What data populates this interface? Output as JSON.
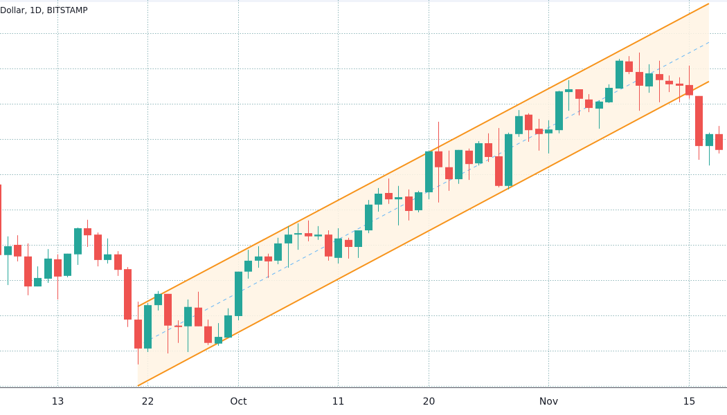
{
  "header": {
    "symbol_title": "Dollar, 1D, BITSTAMP"
  },
  "colors": {
    "up": "#26a69a",
    "down": "#ef5350",
    "channel_line": "#f7931a",
    "channel_fill": "#fff3e3",
    "channel_midline": "#64b5f6",
    "grid": "#6a9fa3",
    "axis_text": "#131722"
  },
  "chart_data": {
    "type": "candlestick",
    "title": "Dollar, 1D, BITSTAMP",
    "xlabel": "",
    "ylabel": "",
    "y_axis_labels_visible": false,
    "y_units": "price levels expressed in horizontal gridline intervals (no price scale printed)",
    "ylim": [
      -0.04,
      10.94
    ],
    "grid": true,
    "x_ticks": [
      {
        "date": "Sep 13",
        "label": "13"
      },
      {
        "date": "Sep 22",
        "label": "22"
      },
      {
        "date": "Oct 1",
        "label": "Oct"
      },
      {
        "date": "Oct 11",
        "label": "11"
      },
      {
        "date": "Oct 20",
        "label": "20"
      },
      {
        "date": "Nov 1",
        "label": "Nov"
      },
      {
        "date": "Nov 15",
        "label": "15"
      }
    ],
    "candles": [
      {
        "date": "Sep 7",
        "o": 5.71,
        "h": 5.84,
        "l": 3.65,
        "c": 3.71
      },
      {
        "date": "Sep 8",
        "o": 3.71,
        "h": 4.24,
        "l": 2.86,
        "c": 3.96
      },
      {
        "date": "Sep 9",
        "o": 4.0,
        "h": 4.27,
        "l": 3.53,
        "c": 3.67
      },
      {
        "date": "Sep 10",
        "o": 3.67,
        "h": 4.04,
        "l": 2.57,
        "c": 2.82
      },
      {
        "date": "Sep 11",
        "o": 2.82,
        "h": 3.39,
        "l": 2.82,
        "c": 3.06
      },
      {
        "date": "Sep 12",
        "o": 3.04,
        "h": 3.88,
        "l": 2.92,
        "c": 3.61
      },
      {
        "date": "Sep 13",
        "o": 3.59,
        "h": 3.73,
        "l": 2.45,
        "c": 3.1
      },
      {
        "date": "Sep 14",
        "o": 3.12,
        "h": 3.75,
        "l": 3.08,
        "c": 3.75
      },
      {
        "date": "Sep 15",
        "o": 3.73,
        "h": 4.49,
        "l": 3.43,
        "c": 4.47
      },
      {
        "date": "Sep 16",
        "o": 4.47,
        "h": 4.71,
        "l": 3.94,
        "c": 4.27
      },
      {
        "date": "Sep 17",
        "o": 4.29,
        "h": 4.35,
        "l": 3.39,
        "c": 3.57
      },
      {
        "date": "Sep 18",
        "o": 3.57,
        "h": 4.18,
        "l": 3.47,
        "c": 3.73
      },
      {
        "date": "Sep 19",
        "o": 3.73,
        "h": 3.82,
        "l": 3.12,
        "c": 3.29
      },
      {
        "date": "Sep 20",
        "o": 3.31,
        "h": 3.37,
        "l": 1.67,
        "c": 1.88
      },
      {
        "date": "Sep 21",
        "o": 1.88,
        "h": 2.39,
        "l": 0.61,
        "c": 1.06
      },
      {
        "date": "Sep 22",
        "o": 1.06,
        "h": 2.35,
        "l": 0.96,
        "c": 2.29
      },
      {
        "date": "Sep 23",
        "o": 2.29,
        "h": 2.69,
        "l": 2.14,
        "c": 2.61
      },
      {
        "date": "Sep 24",
        "o": 2.61,
        "h": 2.61,
        "l": 0.92,
        "c": 1.71
      },
      {
        "date": "Sep 25",
        "o": 1.71,
        "h": 1.86,
        "l": 1.22,
        "c": 1.67
      },
      {
        "date": "Sep 26",
        "o": 1.69,
        "h": 2.45,
        "l": 0.96,
        "c": 2.24
      },
      {
        "date": "Sep 27",
        "o": 2.22,
        "h": 2.67,
        "l": 1.69,
        "c": 1.69
      },
      {
        "date": "Sep 28",
        "o": 1.69,
        "h": 1.88,
        "l": 1.16,
        "c": 1.22
      },
      {
        "date": "Sep 29",
        "o": 1.2,
        "h": 1.78,
        "l": 1.14,
        "c": 1.39
      },
      {
        "date": "Sep 30",
        "o": 1.37,
        "h": 2.2,
        "l": 1.37,
        "c": 2.0
      },
      {
        "date": "Oct 1",
        "o": 1.98,
        "h": 3.24,
        "l": 1.86,
        "c": 3.24
      },
      {
        "date": "Oct 2",
        "o": 3.24,
        "h": 3.86,
        "l": 3.04,
        "c": 3.55
      },
      {
        "date": "Oct 3",
        "o": 3.55,
        "h": 3.96,
        "l": 3.35,
        "c": 3.67
      },
      {
        "date": "Oct 4",
        "o": 3.67,
        "h": 3.75,
        "l": 3.06,
        "c": 3.53
      },
      {
        "date": "Oct 5",
        "o": 3.55,
        "h": 4.2,
        "l": 3.45,
        "c": 4.04
      },
      {
        "date": "Oct 6",
        "o": 4.04,
        "h": 4.53,
        "l": 3.35,
        "c": 4.29
      },
      {
        "date": "Oct 7",
        "o": 4.29,
        "h": 4.61,
        "l": 3.86,
        "c": 4.33
      },
      {
        "date": "Oct 8",
        "o": 4.33,
        "h": 4.69,
        "l": 4.1,
        "c": 4.24
      },
      {
        "date": "Oct 9",
        "o": 4.24,
        "h": 4.53,
        "l": 4.14,
        "c": 4.29
      },
      {
        "date": "Oct 10",
        "o": 4.29,
        "h": 4.41,
        "l": 3.55,
        "c": 3.67
      },
      {
        "date": "Oct 11",
        "o": 3.63,
        "h": 4.47,
        "l": 3.47,
        "c": 4.18
      },
      {
        "date": "Oct 12",
        "o": 4.14,
        "h": 4.2,
        "l": 3.61,
        "c": 3.94
      },
      {
        "date": "Oct 13",
        "o": 3.94,
        "h": 4.41,
        "l": 3.63,
        "c": 4.41
      },
      {
        "date": "Oct 14",
        "o": 4.41,
        "h": 5.27,
        "l": 4.33,
        "c": 5.14
      },
      {
        "date": "Oct 15",
        "o": 5.14,
        "h": 5.61,
        "l": 4.94,
        "c": 5.45
      },
      {
        "date": "Oct 16",
        "o": 5.47,
        "h": 5.88,
        "l": 5.16,
        "c": 5.29
      },
      {
        "date": "Oct 17",
        "o": 5.29,
        "h": 5.67,
        "l": 4.55,
        "c": 5.35
      },
      {
        "date": "Oct 18",
        "o": 5.37,
        "h": 5.57,
        "l": 4.69,
        "c": 4.96
      },
      {
        "date": "Oct 19",
        "o": 4.98,
        "h": 5.53,
        "l": 4.92,
        "c": 5.49
      },
      {
        "date": "Oct 20",
        "o": 5.49,
        "h": 6.65,
        "l": 5.29,
        "c": 6.65
      },
      {
        "date": "Oct 21",
        "o": 6.65,
        "h": 7.49,
        "l": 5.2,
        "c": 6.2
      },
      {
        "date": "Oct 22",
        "o": 6.2,
        "h": 6.67,
        "l": 5.53,
        "c": 5.86
      },
      {
        "date": "Oct 23",
        "o": 5.86,
        "h": 6.69,
        "l": 5.73,
        "c": 6.69
      },
      {
        "date": "Oct 24",
        "o": 6.67,
        "h": 6.73,
        "l": 5.84,
        "c": 6.29
      },
      {
        "date": "Oct 25",
        "o": 6.31,
        "h": 6.94,
        "l": 6.25,
        "c": 6.88
      },
      {
        "date": "Oct 26",
        "o": 6.88,
        "h": 7.16,
        "l": 6.35,
        "c": 6.49
      },
      {
        "date": "Oct 27",
        "o": 6.51,
        "h": 7.31,
        "l": 5.63,
        "c": 5.67
      },
      {
        "date": "Oct 28",
        "o": 5.67,
        "h": 7.18,
        "l": 5.57,
        "c": 7.14
      },
      {
        "date": "Oct 29",
        "o": 7.14,
        "h": 7.82,
        "l": 7.06,
        "c": 7.65
      },
      {
        "date": "Oct 30",
        "o": 7.69,
        "h": 7.73,
        "l": 6.92,
        "c": 7.25
      },
      {
        "date": "Oct 31",
        "o": 7.29,
        "h": 7.57,
        "l": 6.67,
        "c": 7.14
      },
      {
        "date": "Nov 1",
        "o": 7.16,
        "h": 7.53,
        "l": 6.59,
        "c": 7.27
      },
      {
        "date": "Nov 2",
        "o": 7.25,
        "h": 8.37,
        "l": 7.16,
        "c": 8.35
      },
      {
        "date": "Nov 3",
        "o": 8.33,
        "h": 8.67,
        "l": 7.8,
        "c": 8.41
      },
      {
        "date": "Nov 4",
        "o": 8.41,
        "h": 8.41,
        "l": 7.67,
        "c": 8.14
      },
      {
        "date": "Nov 5",
        "o": 8.12,
        "h": 8.27,
        "l": 7.76,
        "c": 7.88
      },
      {
        "date": "Nov 6",
        "o": 7.86,
        "h": 8.1,
        "l": 7.29,
        "c": 8.06
      },
      {
        "date": "Nov 7",
        "o": 8.04,
        "h": 8.55,
        "l": 8.02,
        "c": 8.45
      },
      {
        "date": "Nov 8",
        "o": 8.43,
        "h": 9.27,
        "l": 8.43,
        "c": 9.22
      },
      {
        "date": "Nov 9",
        "o": 9.2,
        "h": 9.35,
        "l": 8.84,
        "c": 8.9
      },
      {
        "date": "Nov 10",
        "o": 8.9,
        "h": 9.45,
        "l": 7.8,
        "c": 8.51
      },
      {
        "date": "Nov 11",
        "o": 8.49,
        "h": 9.12,
        "l": 8.31,
        "c": 8.86
      },
      {
        "date": "Nov 12",
        "o": 8.84,
        "h": 9.22,
        "l": 8.04,
        "c": 8.67
      },
      {
        "date": "Nov 13",
        "o": 8.65,
        "h": 8.8,
        "l": 8.33,
        "c": 8.55
      },
      {
        "date": "Nov 14",
        "o": 8.57,
        "h": 8.75,
        "l": 8.04,
        "c": 8.51
      },
      {
        "date": "Nov 15",
        "o": 8.53,
        "h": 9.08,
        "l": 8.14,
        "c": 8.24
      },
      {
        "date": "Nov 16",
        "o": 8.22,
        "h": 8.22,
        "l": 6.41,
        "c": 6.8
      },
      {
        "date": "Nov 17",
        "o": 6.8,
        "h": 7.18,
        "l": 6.25,
        "c": 7.14
      },
      {
        "date": "Nov 18",
        "o": 7.14,
        "h": 7.37,
        "l": 6.59,
        "c": 6.69
      }
    ],
    "channel": {
      "start_date": "Sep 21",
      "end_date": "Nov 17",
      "upper": [
        2.25,
        10.84
      ],
      "lower": [
        0.0,
        8.63
      ],
      "midline": [
        1.13,
        9.74
      ]
    }
  }
}
